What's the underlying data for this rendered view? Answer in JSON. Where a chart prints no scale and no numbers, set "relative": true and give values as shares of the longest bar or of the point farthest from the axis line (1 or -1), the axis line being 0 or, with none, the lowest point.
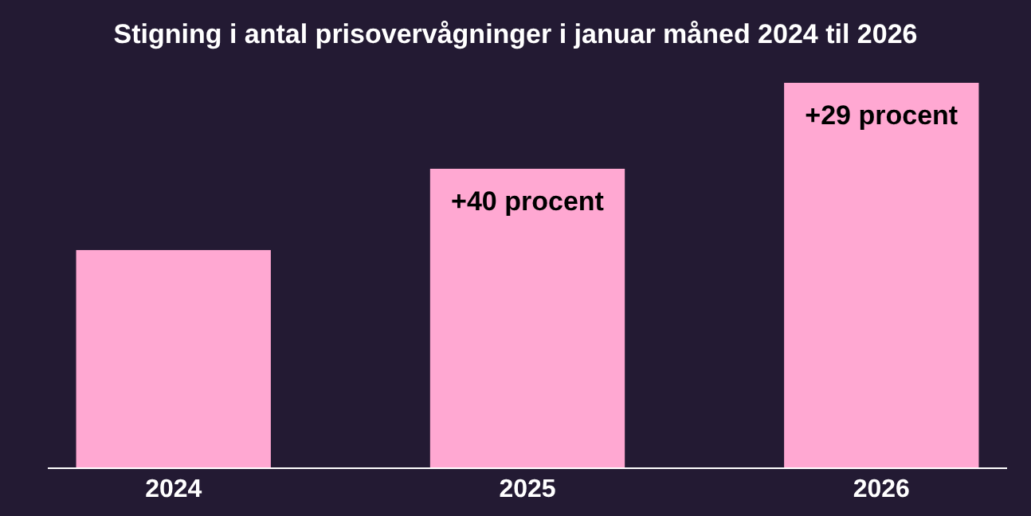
{
  "chart_data": {
    "type": "bar",
    "title": "Stigning i antal prisovervågninger i januar måned 2024 til 2026",
    "categories": [
      "2024",
      "2025",
      "2026"
    ],
    "values": [
      0.566,
      0.777,
      1
    ],
    "color": "#ffa8d2",
    "relative": true,
    "annotations": [
      {
        "text": "+40 procent",
        "x": "2025",
        "y": 0.777
      },
      {
        "text": "+29 procent",
        "x": "2026",
        "y": 1
      }
    ]
  }
}
